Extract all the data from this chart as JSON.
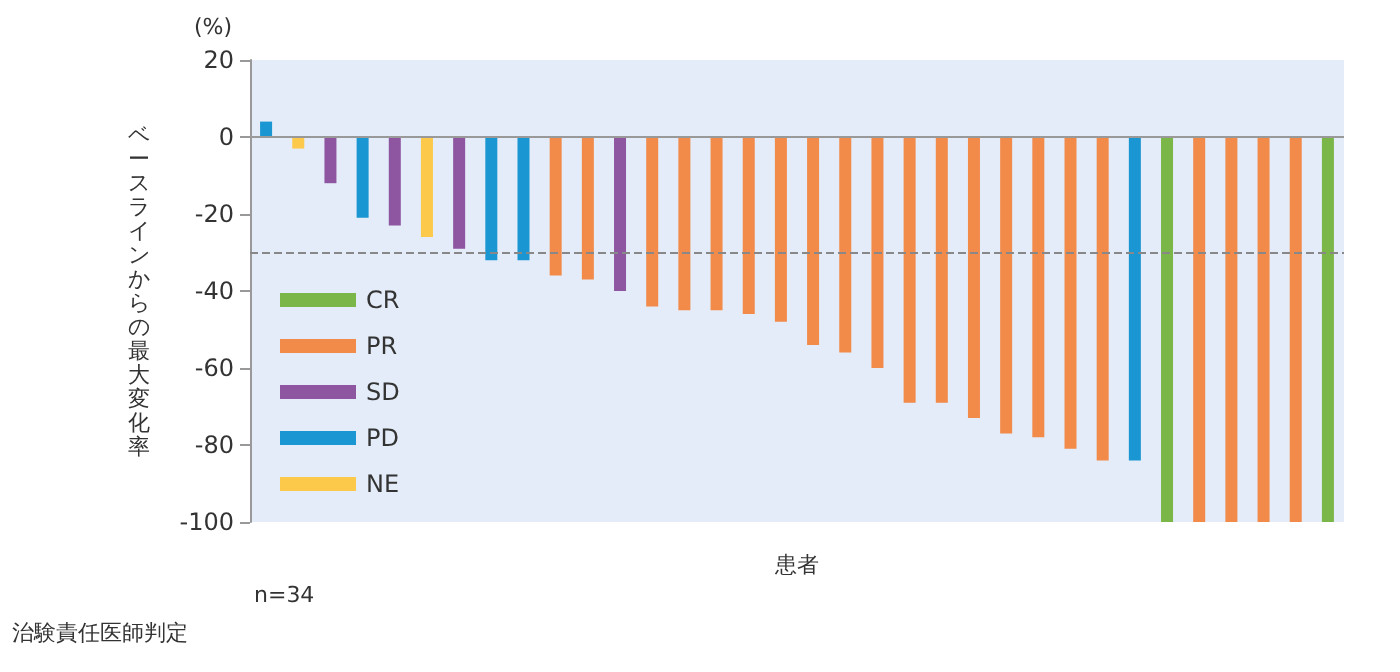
{
  "chart_data": {
    "type": "bar",
    "stacked": true,
    "categories": [
      null,
      null,
      null,
      null,
      null,
      null,
      null,
      null,
      null,
      null,
      null,
      null,
      null,
      null,
      null,
      null,
      null,
      null,
      null,
      null,
      null,
      null,
      null,
      null,
      null,
      null,
      null,
      null,
      null,
      null,
      null,
      null,
      null,
      null
    ],
    "series": [
      {
        "name": "CR",
        "color": "#7ab648",
        "values": [
          null,
          null,
          null,
          null,
          null,
          null,
          null,
          null,
          null,
          null,
          null,
          null,
          null,
          null,
          null,
          null,
          null,
          null,
          null,
          null,
          null,
          null,
          null,
          null,
          null,
          null,
          null,
          null,
          -100,
          null,
          null,
          null,
          null,
          -100
        ]
      },
      {
        "name": "PR",
        "color": "#f28a4a",
        "values": [
          null,
          null,
          null,
          null,
          null,
          null,
          null,
          null,
          null,
          -36,
          -37,
          null,
          -44,
          -45,
          -45,
          -46,
          -48,
          -54,
          -56,
          -60,
          -69,
          -69,
          -73,
          -77,
          -78,
          -81,
          -84,
          null,
          null,
          -100,
          -100,
          -100,
          -100,
          null
        ]
      },
      {
        "name": "SD",
        "color": "#8e55a0",
        "values": [
          null,
          null,
          -12,
          null,
          -23,
          null,
          -29,
          null,
          null,
          null,
          null,
          -40,
          null,
          null,
          null,
          null,
          null,
          null,
          null,
          null,
          null,
          null,
          null,
          null,
          null,
          null,
          null,
          null,
          null,
          null,
          null,
          null,
          null,
          null
        ]
      },
      {
        "name": "PD",
        "color": "#1a96d2",
        "values": [
          4,
          null,
          null,
          -21,
          null,
          null,
          null,
          -32,
          -32,
          null,
          null,
          null,
          null,
          null,
          null,
          null,
          null,
          null,
          null,
          null,
          null,
          null,
          null,
          null,
          null,
          null,
          null,
          -84,
          null,
          null,
          null,
          null,
          null,
          null
        ]
      },
      {
        "name": "NE",
        "color": "#fcc94a",
        "values": [
          null,
          -3,
          null,
          null,
          null,
          -26,
          null,
          null,
          null,
          null,
          null,
          null,
          null,
          null,
          null,
          null,
          null,
          null,
          null,
          null,
          null,
          null,
          null,
          null,
          null,
          null,
          null,
          null,
          null,
          null,
          null,
          null,
          null,
          null
        ]
      }
    ],
    "ylim": [
      -100,
      20
    ],
    "yticks": [
      -100,
      -80,
      -60,
      -40,
      -20,
      0,
      20
    ],
    "ylabel": "ベースラインからの最大変化率",
    "xlabel": "患者",
    "ref_lines": [
      {
        "axis": "y",
        "value": 0,
        "color": "#999999",
        "line_style": "solid"
      },
      {
        "axis": "y",
        "value": -30,
        "color": "#888888",
        "line_style": "dashed"
      }
    ],
    "annotations": [
      "(%)",
      "n=34",
      "治験責任医師判定"
    ],
    "grid": false,
    "legend": "bottom left"
  }
}
